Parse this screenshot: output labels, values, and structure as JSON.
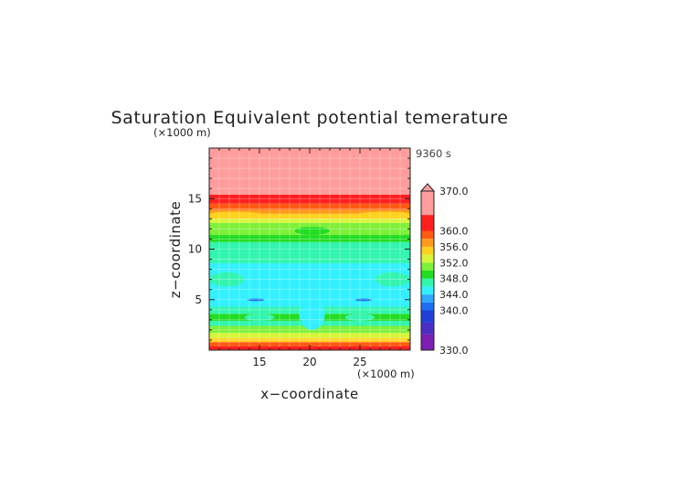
{
  "chart_data": {
    "type": "heatmap",
    "title": "Saturation Equivalent potential temerature",
    "xlabel": "x−coordinate",
    "ylabel": "z−coordinate",
    "x_unit": "(×1000 m)",
    "y_unit": "(×1000 m)",
    "time_label": "9360 s",
    "xlim": [
      10,
      30
    ],
    "ylim": [
      0,
      20
    ],
    "x_ticks": [
      15,
      20,
      25
    ],
    "y_ticks": [
      5,
      10,
      15
    ],
    "grid": true,
    "colorbar": {
      "min": 330,
      "max": 370,
      "labels": [
        "370.0",
        "360.0",
        "356.0",
        "352.0",
        "348.0",
        "344.0",
        "340.0",
        "330.0"
      ],
      "label_values": [
        370,
        360,
        356,
        352,
        348,
        344,
        340,
        330
      ],
      "levels": [
        {
          "from": 330,
          "to": 334,
          "color": "#7a1fb0"
        },
        {
          "from": 334,
          "to": 337,
          "color": "#4b2fc4"
        },
        {
          "from": 337,
          "to": 340,
          "color": "#1f3fd8"
        },
        {
          "from": 340,
          "to": 342,
          "color": "#1f6ef0"
        },
        {
          "from": 342,
          "to": 344,
          "color": "#2fa8ff"
        },
        {
          "from": 344,
          "to": 346,
          "color": "#33f0ff"
        },
        {
          "from": 346,
          "to": 348,
          "color": "#33f5b0"
        },
        {
          "from": 348,
          "to": 350,
          "color": "#22dd22"
        },
        {
          "from": 350,
          "to": 352,
          "color": "#7ef03a"
        },
        {
          "from": 352,
          "to": 354,
          "color": "#d8f53a"
        },
        {
          "from": 354,
          "to": 356,
          "color": "#ffd21f"
        },
        {
          "from": 356,
          "to": 358,
          "color": "#ff9a1a"
        },
        {
          "from": 358,
          "to": 360,
          "color": "#ff5a12"
        },
        {
          "from": 360,
          "to": 364,
          "color": "#ff1f1f"
        },
        {
          "from": 364,
          "to": 370,
          "color": "#ff9c9c"
        }
      ],
      "overflow_color": "#ff9c9c"
    },
    "bands": [
      {
        "z_from": 0.0,
        "z_to": 0.4,
        "value": 361
      },
      {
        "z_from": 0.4,
        "z_to": 0.8,
        "value": 359
      },
      {
        "z_from": 0.8,
        "z_to": 1.2,
        "value": 355
      },
      {
        "z_from": 1.2,
        "z_to": 1.7,
        "value": 352
      },
      {
        "z_from": 1.7,
        "z_to": 2.4,
        "value": 350
      },
      {
        "z_from": 2.4,
        "z_to": 2.9,
        "value": 347
      },
      {
        "z_from": 2.9,
        "z_to": 3.6,
        "value": 349
      },
      {
        "z_from": 3.6,
        "z_to": 4.3,
        "value": 347
      },
      {
        "z_from": 4.3,
        "z_to": 8.6,
        "value": 345
      },
      {
        "z_from": 8.6,
        "z_to": 10.7,
        "value": 347
      },
      {
        "z_from": 10.7,
        "z_to": 11.4,
        "value": 349
      },
      {
        "z_from": 11.4,
        "z_to": 12.6,
        "value": 350
      },
      {
        "z_from": 12.6,
        "z_to": 13.0,
        "value": 352
      },
      {
        "z_from": 13.0,
        "z_to": 13.5,
        "value": 355
      },
      {
        "z_from": 13.5,
        "z_to": 13.9,
        "value": 357
      },
      {
        "z_from": 13.9,
        "z_to": 14.5,
        "value": 359
      },
      {
        "z_from": 14.5,
        "z_to": 15.4,
        "value": 362
      },
      {
        "z_from": 15.4,
        "z_to": 20.0,
        "value": 367
      }
    ],
    "features": [
      {
        "x_from": 10.0,
        "x_to": 13.5,
        "z_from": 6.3,
        "z_to": 7.7,
        "value": 347
      },
      {
        "x_from": 26.5,
        "x_to": 30.0,
        "z_from": 6.3,
        "z_to": 7.7,
        "value": 347
      },
      {
        "x_from": 19.0,
        "x_to": 21.5,
        "z_from": 2.0,
        "z_to": 5.0,
        "value": 345
      },
      {
        "x_from": 13.5,
        "x_to": 16.5,
        "z_from": 2.9,
        "z_to": 3.6,
        "value": 347
      },
      {
        "x_from": 23.5,
        "x_to": 26.5,
        "z_from": 2.9,
        "z_to": 3.6,
        "value": 347
      },
      {
        "x_from": 13.8,
        "x_to": 15.5,
        "z_from": 4.85,
        "z_to": 5.1,
        "value": 341
      },
      {
        "x_from": 24.5,
        "x_to": 26.2,
        "z_from": 4.85,
        "z_to": 5.1,
        "value": 341
      },
      {
        "x_from": 18.5,
        "x_to": 22.0,
        "z_from": 11.4,
        "z_to": 12.2,
        "value": 349
      },
      {
        "x_from": 10.0,
        "x_to": 15.0,
        "z_from": 13.3,
        "z_to": 13.7,
        "value": 354
      },
      {
        "x_from": 25.0,
        "x_to": 30.0,
        "z_from": 13.3,
        "z_to": 13.7,
        "value": 354
      },
      {
        "x_from": 10.0,
        "x_to": 30.0,
        "z_from": 14.9,
        "z_to": 15.3,
        "value": 363
      }
    ]
  }
}
